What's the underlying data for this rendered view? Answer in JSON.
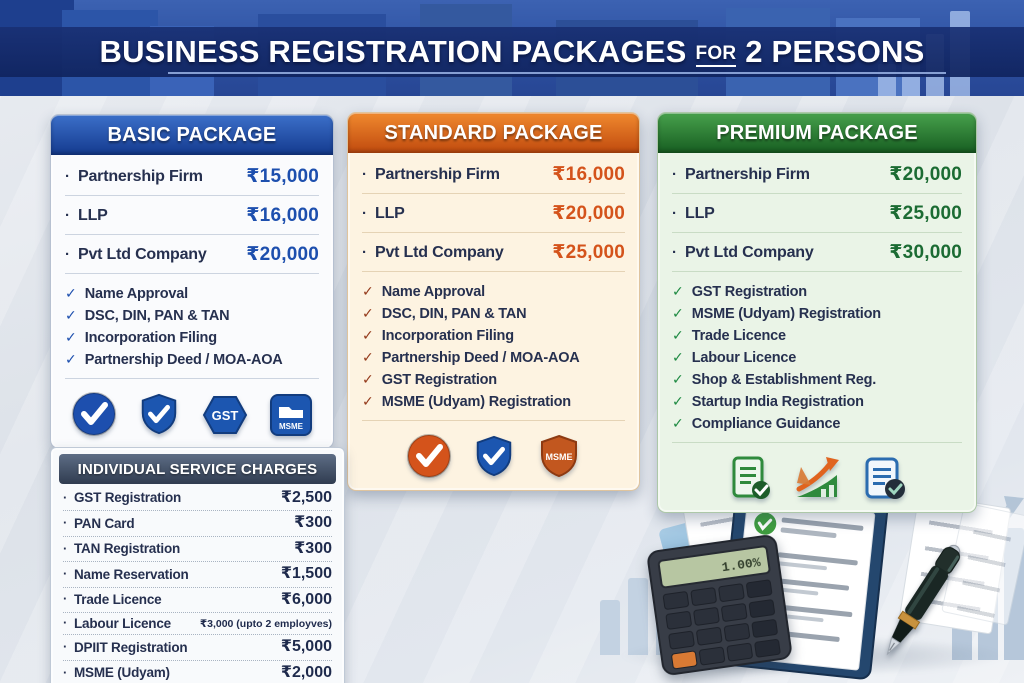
{
  "banner": {
    "title_part1": "BUSINESS REGISTRATION PACKAGES",
    "title_for": "FOR",
    "title_part2": "2 PERSONS",
    "colors": {
      "strip": "#18307b",
      "sky": "#2e55a5",
      "underline": "#9bb4e6"
    }
  },
  "glyphs": {
    "check": "✓",
    "bullet": "·"
  },
  "packages": [
    {
      "name": "basic",
      "title": "BASIC PACKAGE",
      "colors": {
        "hd1": "#3b6fc9",
        "hd2": "#143a8e",
        "bg": "#fafbfd",
        "border": "#b7c1d1",
        "price": "#1d4fae",
        "check": "#1d4fae",
        "text": "#26304f",
        "divider": "#ccd4e0"
      },
      "prices": [
        {
          "label": "Partnership Firm",
          "price": "₹15,000"
        },
        {
          "label": "LLP",
          "price": "₹16,000"
        },
        {
          "label": "Pvt Ltd Company",
          "price": "₹20,000"
        }
      ],
      "features": [
        "Name Approval",
        "DSC, DIN, PAN & TAN",
        "Incorporation Filing",
        "Partnership Deed / MOA-AOA"
      ],
      "icons": [
        "check-circle-icon",
        "shield-check-icon",
        "gst-badge-icon",
        "msme-folder-icon"
      ]
    },
    {
      "name": "standard",
      "title": "STANDARD PACKAGE",
      "colors": {
        "hd1": "#f0892e",
        "hd2": "#c04a0e",
        "bg": "#fdf3e1",
        "border": "#dfc49e",
        "price": "#d4531b",
        "check": "#943a1b",
        "text": "#26304f",
        "divider": "#e5d3b5"
      },
      "prices": [
        {
          "label": "Partnership Firm",
          "price": "₹16,000"
        },
        {
          "label": "LLP",
          "price": "₹20,000"
        },
        {
          "label": "Pvt Ltd Company",
          "price": "₹25,000"
        }
      ],
      "features": [
        "Name Approval",
        "DSC, DIN, PAN & TAN",
        "Incorporation Filing",
        "Partnership Deed / MOA-AOA",
        "GST Registration",
        "MSME (Udyam) Registration"
      ],
      "icons": [
        "check-circle-icon",
        "shield-check-icon",
        "msme-shield-icon"
      ]
    },
    {
      "name": "premium",
      "title": "PREMIUM PACKAGE",
      "colors": {
        "hd1": "#47a14c",
        "hd2": "#175d21",
        "bg": "#eaf4e7",
        "border": "#adc8a8",
        "price": "#1b6b33",
        "check": "#1e8a42",
        "text": "#26304f",
        "divider": "#c9dcc5"
      },
      "prices": [
        {
          "label": "Partnership Firm",
          "price": "₹20,000"
        },
        {
          "label": "LLP",
          "price": "₹25,000"
        },
        {
          "label": "Pvt Ltd Company",
          "price": "₹30,000"
        }
      ],
      "features": [
        "GST Registration",
        "MSME (Udyam) Registration",
        "Trade Licence",
        "Labour Licence",
        "Shop & Establishment Reg.",
        "Startup India Registration",
        "Compliance Guidance"
      ],
      "icons": [
        "doc-check-icon",
        "growth-chart-icon",
        "doc-verified-icon"
      ]
    }
  ],
  "individual_charges": {
    "title": "INDIVIDUAL SERVICE CHARGES",
    "rows": [
      {
        "label": "GST Registration",
        "value": "₹2,500"
      },
      {
        "label": "PAN Card",
        "value": "₹300"
      },
      {
        "label": "TAN Registration",
        "value": "₹300"
      },
      {
        "label": "Name Reservation",
        "value": "₹1,500"
      },
      {
        "label": "Trade Licence",
        "value": "₹6,000"
      },
      {
        "label": "Labour Licence",
        "value": "₹3,000 (upto 2 employves)"
      },
      {
        "label": "DPIIT Registration",
        "value": "₹5,000"
      },
      {
        "label": "MSME (Udyam)",
        "value": "₹2,000"
      }
    ]
  },
  "icon_labels": {
    "gst-badge-icon": "GST",
    "msme-folder-icon": "MSME",
    "msme-shield-icon": "MSME"
  },
  "illustration": {
    "calculator_display": "1.00%"
  }
}
